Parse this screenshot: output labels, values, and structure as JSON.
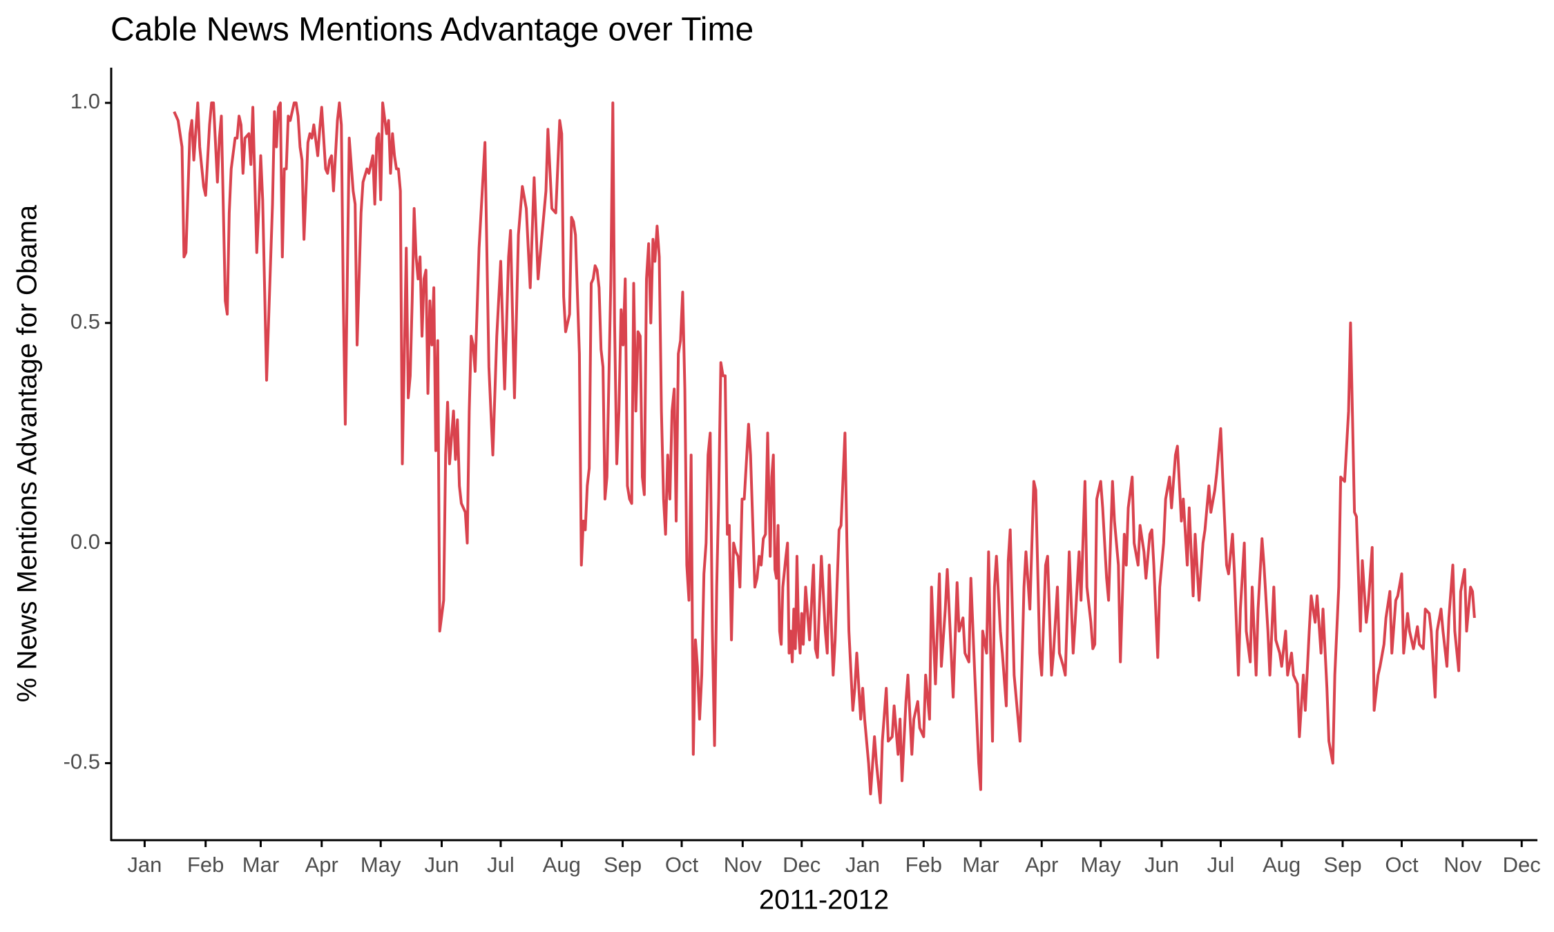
{
  "chart_data": {
    "type": "line",
    "title": "Cable News Mentions Advantage over Time",
    "x_label": "2011-2012",
    "y_label": "% News Mentions Advantage for Obama",
    "xlim": [
      -17,
      708
    ],
    "ylim": [
      -0.675,
      1.08
    ],
    "xticks": [
      {
        "value": 0,
        "label": "Jan"
      },
      {
        "value": 31,
        "label": "Feb"
      },
      {
        "value": 59,
        "label": "Mar"
      },
      {
        "value": 90,
        "label": "Apr"
      },
      {
        "value": 120,
        "label": "May"
      },
      {
        "value": 151,
        "label": "Jun"
      },
      {
        "value": 181,
        "label": "Jul"
      },
      {
        "value": 212,
        "label": "Aug"
      },
      {
        "value": 243,
        "label": "Sep"
      },
      {
        "value": 273,
        "label": "Oct"
      },
      {
        "value": 304,
        "label": "Nov"
      },
      {
        "value": 334,
        "label": "Dec"
      },
      {
        "value": 365,
        "label": "Jan"
      },
      {
        "value": 396,
        "label": "Feb"
      },
      {
        "value": 425,
        "label": "Mar"
      },
      {
        "value": 456,
        "label": "Apr"
      },
      {
        "value": 486,
        "label": "May"
      },
      {
        "value": 517,
        "label": "Jun"
      },
      {
        "value": 547,
        "label": "Jul"
      },
      {
        "value": 578,
        "label": "Aug"
      },
      {
        "value": 609,
        "label": "Sep"
      },
      {
        "value": 639,
        "label": "Oct"
      },
      {
        "value": 670,
        "label": "Nov"
      },
      {
        "value": 700,
        "label": "Dec"
      }
    ],
    "yticks": [
      -0.5,
      {
        "value": 0,
        "label": "0.0"
      },
      0.5,
      {
        "value": 1,
        "label": "1.0"
      }
    ],
    "grid": false,
    "x": [
      15,
      17,
      19,
      20,
      21,
      23,
      24,
      25,
      27,
      28,
      30,
      31,
      33,
      34,
      35,
      37,
      38,
      39,
      41,
      42,
      43,
      44,
      46,
      47,
      48,
      49,
      50,
      51,
      53,
      54,
      55,
      57,
      58,
      59,
      60,
      62,
      65,
      66,
      67,
      68,
      69,
      70,
      71,
      72,
      73,
      74,
      76,
      77,
      78,
      79,
      80,
      81,
      83,
      84,
      85,
      86,
      88,
      89,
      90,
      92,
      93,
      94,
      95,
      96,
      97,
      98,
      99,
      100,
      101,
      102,
      104,
      106,
      107,
      108,
      110,
      111,
      113,
      114,
      116,
      117,
      118,
      119,
      120,
      121,
      123,
      124,
      125,
      126,
      127,
      128,
      129,
      130,
      131,
      133,
      134,
      135,
      136,
      137,
      138,
      139,
      140,
      141,
      142,
      143,
      144,
      145,
      146,
      147,
      148,
      149,
      150,
      152,
      153,
      154,
      155,
      156,
      157,
      158,
      159,
      160,
      161,
      162,
      163,
      164,
      165,
      166,
      167,
      168,
      170,
      173,
      175,
      177,
      179,
      181,
      183,
      185,
      186,
      188,
      190,
      192,
      194,
      196,
      198,
      200,
      202,
      204,
      205,
      207,
      209,
      211,
      212,
      213,
      214,
      216,
      217,
      218,
      219,
      221,
      222,
      223,
      224,
      225,
      226,
      227,
      228,
      229,
      230,
      231,
      232,
      233,
      234,
      235,
      237,
      238,
      238.9,
      240,
      241.1,
      242.2,
      243.2,
      244.3,
      245.4,
      246.5,
      247.6,
      248.6,
      249.7,
      250.8,
      251.9,
      253,
      254,
      255.1,
      256.2,
      257.3,
      258.4,
      259.4,
      260.5,
      261.6,
      262.7,
      263.8,
      264.8,
      265.9,
      267,
      268.1,
      269.2,
      270.2,
      271.3,
      272.4,
      273.5,
      274.6,
      275.6,
      276.7,
      277.8,
      278.9,
      280,
      281,
      282.1,
      283.2,
      284.3,
      285.4,
      286.4,
      287.5,
      288.6,
      289.7,
      290.8,
      291.8,
      292.9,
      294,
      295.1,
      296.2,
      297.2,
      298.3,
      299.4,
      300.5,
      301.6,
      302.6,
      303.7,
      304.8,
      307,
      308,
      309.1,
      310.2,
      311.3,
      312.4,
      313.4,
      314.5,
      315.6,
      316.7,
      318,
      318.8,
      319.6,
      320.4,
      321.2,
      322,
      322.8,
      323.6,
      324.4,
      326,
      326.8,
      327.6,
      328.4,
      329.2,
      330,
      330.8,
      331.6,
      332.4,
      333.2,
      334,
      334.8,
      336,
      338,
      340,
      341,
      342,
      344,
      346,
      347,
      348,
      350,
      351,
      353,
      354,
      356,
      357,
      358,
      360,
      361,
      362,
      364,
      365,
      366,
      368,
      369,
      371,
      372,
      374,
      375,
      377,
      378,
      380,
      381,
      383,
      384,
      385,
      387,
      388,
      390,
      391,
      393,
      394,
      396,
      397,
      399,
      400,
      402,
      404,
      405,
      407,
      408,
      410,
      411,
      413,
      414,
      416,
      417,
      419,
      420,
      422,
      424,
      425,
      426,
      428,
      429,
      431,
      432,
      433,
      435,
      436,
      438,
      439,
      440,
      442,
      444,
      445,
      447,
      448,
      450,
      452,
      453,
      455,
      456,
      458,
      459,
      461,
      462,
      464,
      465,
      467,
      468,
      470,
      472,
      473,
      475,
      476,
      478,
      479,
      481,
      482,
      483,
      484,
      486,
      487,
      489,
      490,
      492,
      493,
      495,
      496,
      498,
      499,
      500,
      502,
      503,
      505,
      506,
      508,
      509,
      511,
      512,
      513,
      515,
      516,
      518,
      519,
      521,
      522,
      524,
      525,
      527,
      528,
      530,
      531,
      533,
      534,
      536,
      538,
      539,
      541,
      542,
      544,
      545,
      547,
      548,
      550,
      551,
      553,
      554,
      556,
      557,
      559,
      560,
      562,
      563,
      565,
      566,
      568,
      569,
      571,
      572,
      574,
      575,
      577,
      578,
      580,
      581,
      583,
      584,
      586,
      587,
      589,
      590,
      592,
      593,
      595,
      596,
      598,
      599,
      601,
      602,
      604,
      605,
      607,
      608,
      610,
      612,
      613,
      615,
      616,
      618,
      619,
      621,
      622,
      624,
      625,
      627,
      628,
      630,
      631,
      633,
      634,
      636,
      637,
      639,
      640,
      642,
      643,
      645,
      647,
      648,
      650,
      651,
      653,
      654,
      656,
      657,
      659,
      660,
      662,
      663,
      665,
      666,
      668,
      669,
      671,
      672,
      674,
      675,
      676
    ],
    "series": [
      {
        "color": "#d9434e",
        "values": [
          0.98,
          0.96,
          0.9,
          0.65,
          0.66,
          0.93,
          0.96,
          0.87,
          1.0,
          0.9,
          0.81,
          0.79,
          0.95,
          1.0,
          1.0,
          0.82,
          0.92,
          0.97,
          0.55,
          0.52,
          0.75,
          0.85,
          0.92,
          0.92,
          0.97,
          0.95,
          0.84,
          0.92,
          0.93,
          0.86,
          0.99,
          0.66,
          0.76,
          0.88,
          0.78,
          0.37,
          0.77,
          0.98,
          0.9,
          0.99,
          1.0,
          0.65,
          0.85,
          0.85,
          0.97,
          0.96,
          1.0,
          1.0,
          0.97,
          0.9,
          0.87,
          0.69,
          0.91,
          0.93,
          0.92,
          0.95,
          0.88,
          0.94,
          0.99,
          0.85,
          0.84,
          0.87,
          0.88,
          0.8,
          0.88,
          0.96,
          1.0,
          0.95,
          0.55,
          0.27,
          0.92,
          0.8,
          0.77,
          0.45,
          0.75,
          0.82,
          0.85,
          0.84,
          0.88,
          0.77,
          0.92,
          0.93,
          0.78,
          1.0,
          0.93,
          0.96,
          0.84,
          0.93,
          0.88,
          0.85,
          0.85,
          0.8,
          0.18,
          0.67,
          0.33,
          0.38,
          0.55,
          0.76,
          0.65,
          0.6,
          0.65,
          0.47,
          0.6,
          0.62,
          0.34,
          0.55,
          0.45,
          0.58,
          0.21,
          0.46,
          -0.2,
          -0.13,
          0.2,
          0.32,
          0.18,
          0.24,
          0.3,
          0.19,
          0.28,
          0.13,
          0.09,
          0.08,
          0.07,
          0,
          0.3,
          0.47,
          0.45,
          0.39,
          0.67,
          0.91,
          0.4,
          0.2,
          0.47,
          0.64,
          0.35,
          0.65,
          0.71,
          0.33,
          0.7,
          0.81,
          0.76,
          0.58,
          0.83,
          0.6,
          0.7,
          0.8,
          0.94,
          0.76,
          0.75,
          0.96,
          0.93,
          0.56,
          0.48,
          0.52,
          0.74,
          0.73,
          0.7,
          0.43,
          -0.05,
          0.05,
          0.03,
          0.13,
          0.17,
          0.59,
          0.6,
          0.63,
          0.62,
          0.58,
          0.44,
          0.4,
          0.1,
          0.15,
          0.6,
          1.0,
          0.5,
          0.18,
          0.3,
          0.53,
          0.45,
          0.6,
          0.13,
          0.1,
          0.09,
          0.59,
          0.3,
          0.48,
          0.47,
          0.15,
          0.11,
          0.6,
          0.68,
          0.5,
          0.69,
          0.64,
          0.72,
          0.65,
          0.3,
          0.1,
          0.02,
          0.2,
          0.1,
          0.3,
          0.35,
          0.05,
          0.43,
          0.46,
          0.57,
          0.35,
          -0.05,
          -0.13,
          0.2,
          -0.48,
          -0.22,
          -0.28,
          -0.4,
          -0.3,
          -0.07,
          0,
          0.2,
          0.25,
          -0.2,
          -0.46,
          -0.1,
          0.1,
          0.41,
          0.38,
          0.38,
          0.02,
          0.04,
          -0.22,
          0,
          -0.02,
          -0.03,
          -0.1,
          0.1,
          0.1,
          0.27,
          0.2,
          0.05,
          -0.1,
          -0.08,
          -0.03,
          -0.05,
          0.01,
          0.02,
          0.25,
          -0.03,
          0.15,
          0.2,
          -0.06,
          -0.08,
          0.04,
          -0.2,
          -0.23,
          -0.1,
          -0.03,
          0,
          -0.25,
          -0.2,
          -0.27,
          -0.15,
          -0.24,
          -0.03,
          -0.2,
          -0.25,
          -0.16,
          -0.23,
          -0.1,
          -0.22,
          -0.05,
          -0.24,
          -0.26,
          -0.03,
          -0.2,
          -0.25,
          -0.05,
          -0.3,
          -0.22,
          0.03,
          0.04,
          0.25,
          0,
          -0.2,
          -0.38,
          -0.33,
          -0.25,
          -0.4,
          -0.33,
          -0.4,
          -0.5,
          -0.57,
          -0.44,
          -0.5,
          -0.59,
          -0.45,
          -0.33,
          -0.45,
          -0.44,
          -0.37,
          -0.48,
          -0.4,
          -0.54,
          -0.36,
          -0.3,
          -0.48,
          -0.4,
          -0.36,
          -0.42,
          -0.44,
          -0.3,
          -0.4,
          -0.1,
          -0.32,
          -0.07,
          -0.28,
          -0.15,
          -0.06,
          -0.25,
          -0.35,
          -0.09,
          -0.2,
          -0.17,
          -0.25,
          -0.27,
          -0.08,
          -0.3,
          -0.5,
          -0.56,
          -0.2,
          -0.25,
          -0.02,
          -0.45,
          -0.1,
          -0.03,
          -0.2,
          -0.25,
          -0.37,
          -0.04,
          0.03,
          -0.3,
          -0.4,
          -0.45,
          -0.1,
          -0.02,
          -0.15,
          0.14,
          0.12,
          -0.25,
          -0.3,
          -0.05,
          -0.03,
          -0.3,
          -0.25,
          -0.1,
          -0.25,
          -0.28,
          -0.3,
          -0.02,
          -0.25,
          -0.18,
          -0.02,
          -0.13,
          0.14,
          -0.1,
          -0.18,
          -0.24,
          -0.23,
          0.1,
          0.14,
          0.08,
          -0.08,
          -0.13,
          0.14,
          0.05,
          -0.05,
          -0.27,
          0.02,
          -0.05,
          0.08,
          0.15,
          0,
          -0.05,
          0.04,
          -0.02,
          -0.08,
          0.02,
          0.03,
          -0.05,
          -0.26,
          -0.1,
          0,
          0.1,
          0.15,
          0.08,
          0.2,
          0.22,
          0.05,
          0.1,
          -0.05,
          0.08,
          -0.12,
          0.02,
          -0.13,
          0,
          0.03,
          0.13,
          0.07,
          0.12,
          0.16,
          0.26,
          0.15,
          -0.05,
          -0.07,
          0.02,
          -0.07,
          -0.3,
          -0.15,
          0,
          -0.2,
          -0.27,
          -0.1,
          -0.3,
          -0.15,
          0.01,
          -0.05,
          -0.2,
          -0.3,
          -0.1,
          -0.22,
          -0.25,
          -0.28,
          -0.2,
          -0.3,
          -0.25,
          -0.3,
          -0.32,
          -0.44,
          -0.3,
          -0.38,
          -0.2,
          -0.12,
          -0.18,
          -0.12,
          -0.25,
          -0.15,
          -0.33,
          -0.45,
          -0.5,
          -0.3,
          -0.1,
          0.15,
          0.14,
          0.3,
          0.5,
          0.07,
          0.06,
          -0.2,
          -0.04,
          -0.18,
          -0.14,
          -0.01,
          -0.38,
          -0.3,
          -0.28,
          -0.23,
          -0.17,
          -0.11,
          -0.25,
          -0.13,
          -0.12,
          -0.07,
          -0.25,
          -0.16,
          -0.2,
          -0.24,
          -0.19,
          -0.23,
          -0.24,
          -0.15,
          -0.16,
          -0.2,
          -0.35,
          -0.2,
          -0.15,
          -0.2,
          -0.28,
          -0.17,
          -0.05,
          -0.2,
          -0.29,
          -0.11,
          -0.06,
          -0.2,
          -0.1,
          -0.11,
          -0.17
        ]
      }
    ]
  }
}
